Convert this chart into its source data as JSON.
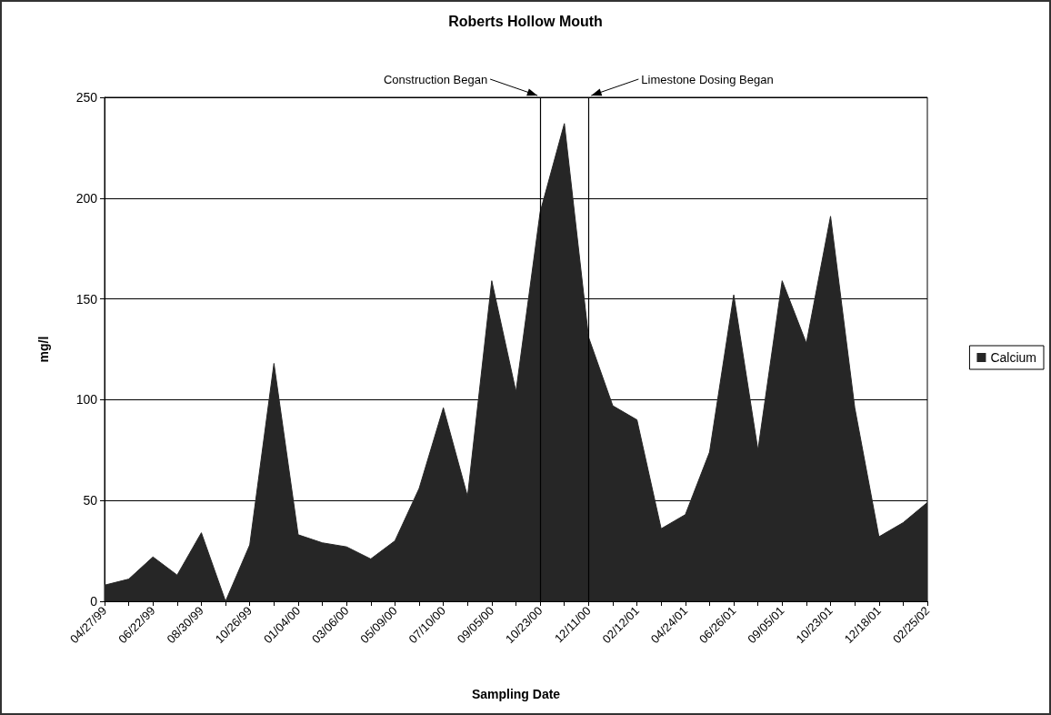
{
  "chart_data": {
    "type": "area",
    "title": "Roberts Hollow Mouth",
    "xlabel": "Sampling Date",
    "ylabel": "mg/l",
    "categories": [
      "04/27/99",
      null,
      "06/22/99",
      null,
      "08/30/99",
      null,
      "10/26/99",
      null,
      "01/04/00",
      null,
      "03/06/00",
      null,
      "05/09/00",
      null,
      "07/10/00",
      null,
      "09/05/00",
      null,
      "10/23/00",
      null,
      "12/11/00",
      null,
      "02/12/01",
      null,
      "04/24/01",
      null,
      "06/26/01",
      null,
      "09/05/01",
      null,
      "10/23/01",
      null,
      "12/18/01",
      null,
      "02/25/02"
    ],
    "series": [
      {
        "name": "Calcium",
        "color": "#262626",
        "values": [
          8,
          11,
          22,
          13,
          34,
          0,
          28,
          118,
          33,
          29,
          27,
          21,
          30,
          56,
          96,
          52,
          159,
          104,
          193,
          237,
          131,
          97,
          90,
          36,
          43,
          74,
          152,
          75,
          159,
          128,
          191,
          96,
          32,
          39,
          49
        ]
      }
    ],
    "ylim": [
      0,
      250
    ],
    "yticks": [
      0,
      50,
      100,
      150,
      200,
      250
    ],
    "grid": "y",
    "legend": "right",
    "marker": "none",
    "ref_lines": [
      {
        "axis": "x",
        "value": "10/23/00",
        "label": "Construction Began"
      },
      {
        "axis": "x",
        "value": "12/11/00",
        "label": "Limestone Dosing Began"
      }
    ]
  }
}
